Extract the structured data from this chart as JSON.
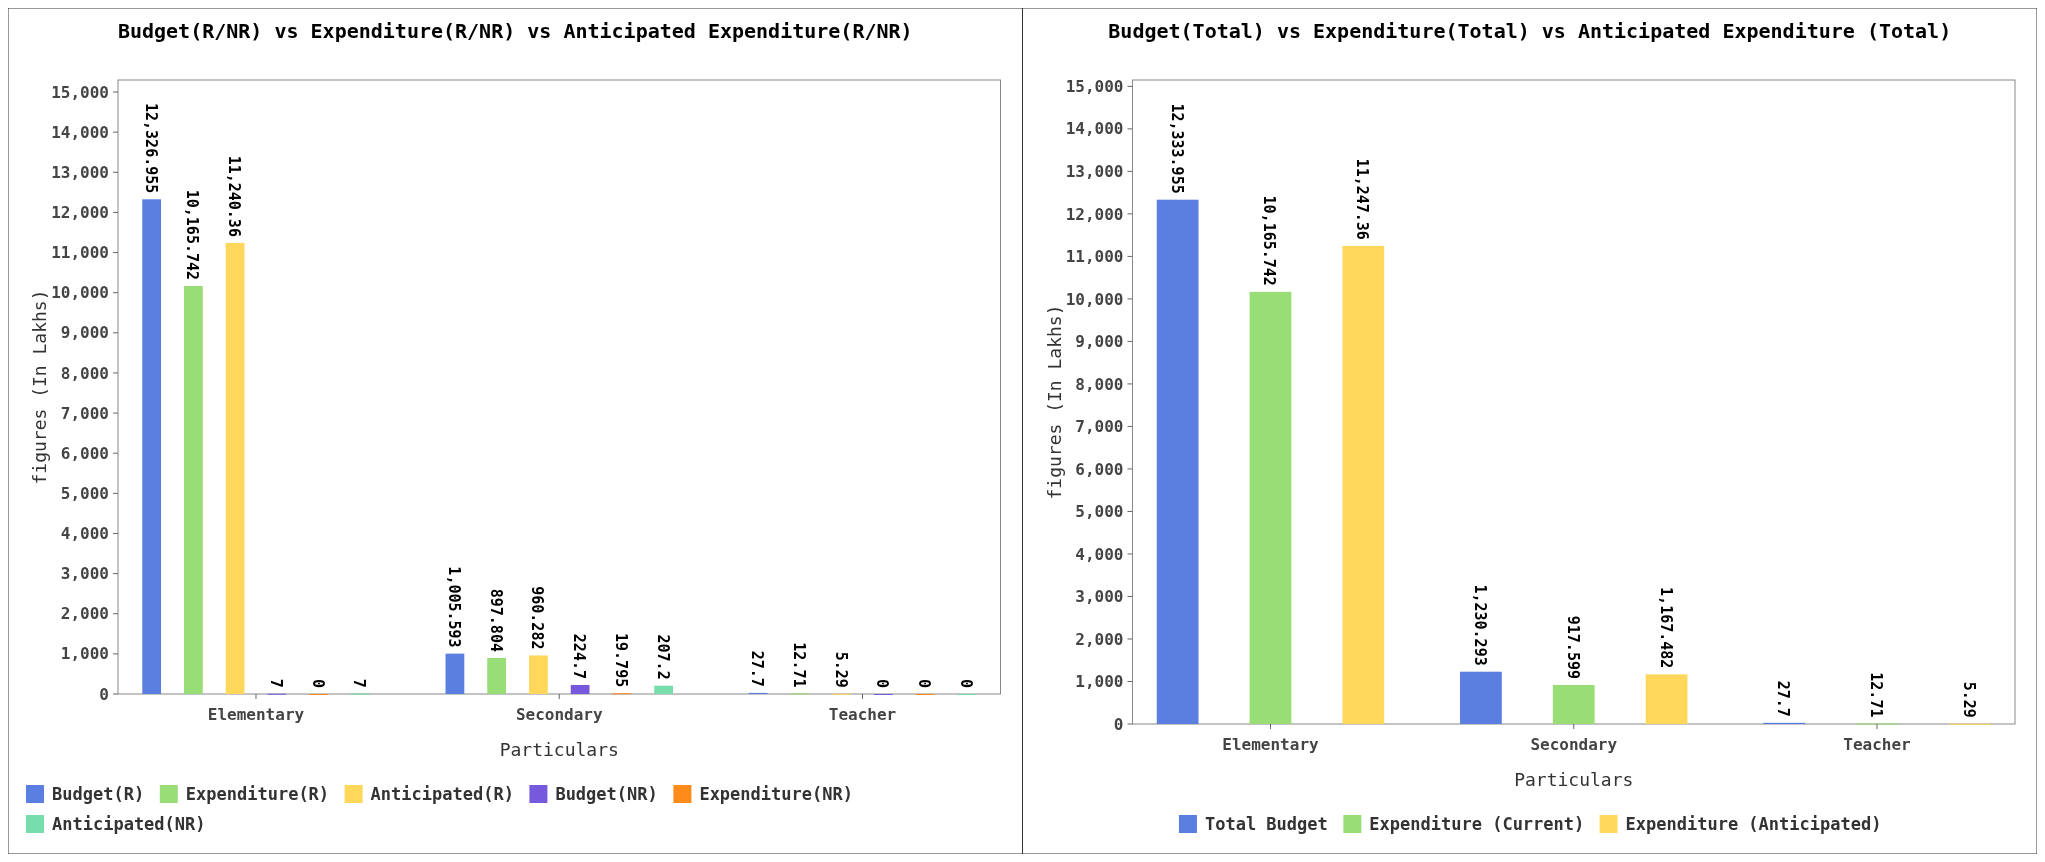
{
  "chart_data": [
    {
      "type": "bar",
      "title": "Budget(R/NR) vs Expenditure(R/NR) vs Anticipated Expenditure(R/NR)",
      "xlabel": "Particulars",
      "ylabel": "figures (In Lakhs)",
      "categories": [
        "Elementary",
        "Secondary",
        "Teacher"
      ],
      "ylim": [
        0,
        15300
      ],
      "yticks": [
        0,
        {
          "value": 1000,
          "label": "1,000"
        },
        {
          "value": 2000,
          "label": "2,000"
        },
        {
          "value": 3000,
          "label": "3,000"
        },
        {
          "value": 4000,
          "label": "4,000"
        },
        {
          "value": 5000,
          "label": "5,000"
        },
        {
          "value": 6000,
          "label": "6,000"
        },
        {
          "value": 7000,
          "label": "7,000"
        },
        {
          "value": 8000,
          "label": "8,000"
        },
        {
          "value": 9000,
          "label": "9,000"
        },
        {
          "value": 10000,
          "label": "10,000"
        },
        {
          "value": 11000,
          "label": "11,000"
        },
        {
          "value": 12000,
          "label": "12,000"
        },
        {
          "value": 13000,
          "label": "13,000"
        },
        {
          "value": 14000,
          "label": "14,000"
        },
        {
          "value": 15000,
          "label": "15,000"
        }
      ],
      "grid": false,
      "legend": "bottom",
      "series": [
        {
          "name": "Budget(R)",
          "color": "#5b7fe0",
          "values": [
            12326.955,
            1005.593,
            27.7
          ],
          "value_labels": [
            "12,326.955",
            "1,005.593",
            "27.7"
          ]
        },
        {
          "name": "Expenditure(R)",
          "color": "#99dd77",
          "values": [
            10165.742,
            897.804,
            12.71
          ],
          "value_labels": [
            "10,165.742",
            "897.804",
            "12.71"
          ]
        },
        {
          "name": "Anticipated(R)",
          "color": "#ffd75a",
          "values": [
            11240.36,
            960.282,
            5.29
          ],
          "value_labels": [
            "11,240.36",
            "960.282",
            "5.29"
          ]
        },
        {
          "name": "Budget(NR)",
          "color": "#7759dd",
          "values": [
            7,
            224.7,
            0
          ],
          "value_labels": [
            "7",
            "224.7",
            "0"
          ]
        },
        {
          "name": "Expenditure(NR)",
          "color": "#ff8c1a",
          "values": [
            0,
            19.795,
            0
          ],
          "value_labels": [
            "0",
            "19.795",
            "0"
          ]
        },
        {
          "name": "Anticipated(NR)",
          "color": "#77ddaa",
          "values": [
            7,
            207.2,
            0
          ],
          "value_labels": [
            "7",
            "207.2",
            "0"
          ]
        }
      ]
    },
    {
      "type": "bar",
      "title": "Budget(Total) vs Expenditure(Total) vs Anticipated Expenditure (Total)",
      "xlabel": "Particulars",
      "ylabel": "figures (In Lakhs)",
      "categories": [
        "Elementary",
        "Secondary",
        "Teacher"
      ],
      "ylim": [
        0,
        15150
      ],
      "yticks": [
        0,
        {
          "value": 1000,
          "label": "1,000"
        },
        {
          "value": 2000,
          "label": "2,000"
        },
        {
          "value": 3000,
          "label": "3,000"
        },
        {
          "value": 4000,
          "label": "4,000"
        },
        {
          "value": 5000,
          "label": "5,000"
        },
        {
          "value": 6000,
          "label": "6,000"
        },
        {
          "value": 7000,
          "label": "7,000"
        },
        {
          "value": 8000,
          "label": "8,000"
        },
        {
          "value": 9000,
          "label": "9,000"
        },
        {
          "value": 10000,
          "label": "10,000"
        },
        {
          "value": 11000,
          "label": "11,000"
        },
        {
          "value": 12000,
          "label": "12,000"
        },
        {
          "value": 13000,
          "label": "13,000"
        },
        {
          "value": 14000,
          "label": "14,000"
        },
        {
          "value": 15000,
          "label": "15,000"
        }
      ],
      "grid": false,
      "legend": "bottom",
      "series": [
        {
          "name": "Total Budget",
          "color": "#5b7fe0",
          "values": [
            12333.955,
            1230.293,
            27.7
          ],
          "value_labels": [
            "12,333.955",
            "1,230.293",
            "27.7"
          ]
        },
        {
          "name": "Expenditure (Current)",
          "color": "#99dd77",
          "values": [
            10165.742,
            917.599,
            12.71
          ],
          "value_labels": [
            "10,165.742",
            "917.599",
            "12.71"
          ]
        },
        {
          "name": "Expenditure (Anticipated)",
          "color": "#ffd75a",
          "values": [
            11247.36,
            1167.482,
            5.29
          ],
          "value_labels": [
            "11,247.36",
            "1,167.482",
            "5.29"
          ]
        }
      ]
    }
  ]
}
